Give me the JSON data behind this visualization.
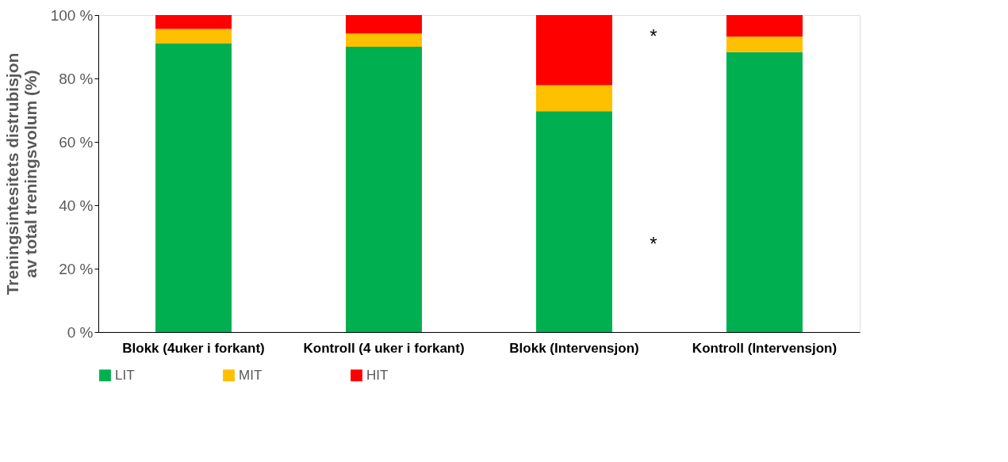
{
  "chart_data": {
    "type": "bar",
    "stacked": true,
    "ylabel": "Treningsintesitets distrubisjon av total treningsvolum (%)",
    "categories": [
      "Blokk (4uker i forkant)",
      "Kontroll (4 uker i forkant)",
      "Blokk (Intervensjon)",
      "Kontroll (Intervensjon)"
    ],
    "series": [
      {
        "name": "LIT",
        "color": "#00b050",
        "values": [
          91.0,
          90.0,
          69.7,
          88.3
        ]
      },
      {
        "name": "MIT",
        "color": "#ffc000",
        "values": [
          4.6,
          4.2,
          8.2,
          4.9
        ]
      },
      {
        "name": "HIT",
        "color": "#ff0000",
        "values": [
          4.4,
          5.8,
          22.1,
          6.8
        ]
      }
    ],
    "ylim": [
      0,
      100
    ],
    "yticks": [
      {
        "value": 0,
        "label": "0 %"
      },
      {
        "value": 20,
        "label": "20 %"
      },
      {
        "value": 40,
        "label": "40 %"
      },
      {
        "value": 60,
        "label": "60 %"
      },
      {
        "value": 80,
        "label": "80 %"
      },
      {
        "value": 100,
        "label": "100 %"
      }
    ],
    "annotations": [
      "*",
      "*"
    ],
    "legend": "bottom",
    "grid": false
  }
}
